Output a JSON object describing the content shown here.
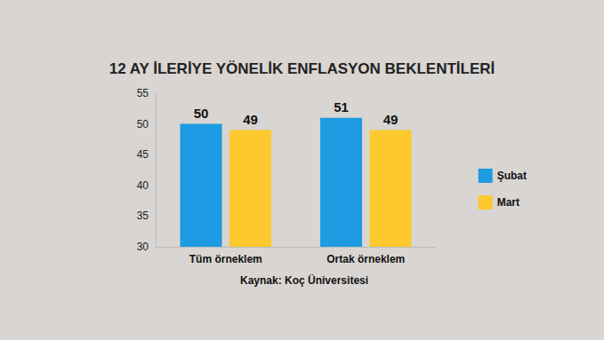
{
  "chart_data": {
    "type": "bar",
    "title": "12 AY İLERİYE YÖNELİK ENFLASYON BEKLENTİLERİ",
    "categories": [
      "Tüm örneklem",
      "Ortak örneklem"
    ],
    "series": [
      {
        "name": "Şubat",
        "color": "#1d9be2",
        "values": [
          50,
          51
        ]
      },
      {
        "name": "Mart",
        "color": "#fdc92f",
        "values": [
          49,
          49
        ]
      }
    ],
    "ylim": [
      30,
      55
    ],
    "yticks": [
      30,
      35,
      40,
      45,
      50,
      55
    ],
    "grid": false,
    "legend": "right",
    "data_labels": true,
    "annotations": [
      "Kaynak: Koç Üniversitesi"
    ]
  }
}
